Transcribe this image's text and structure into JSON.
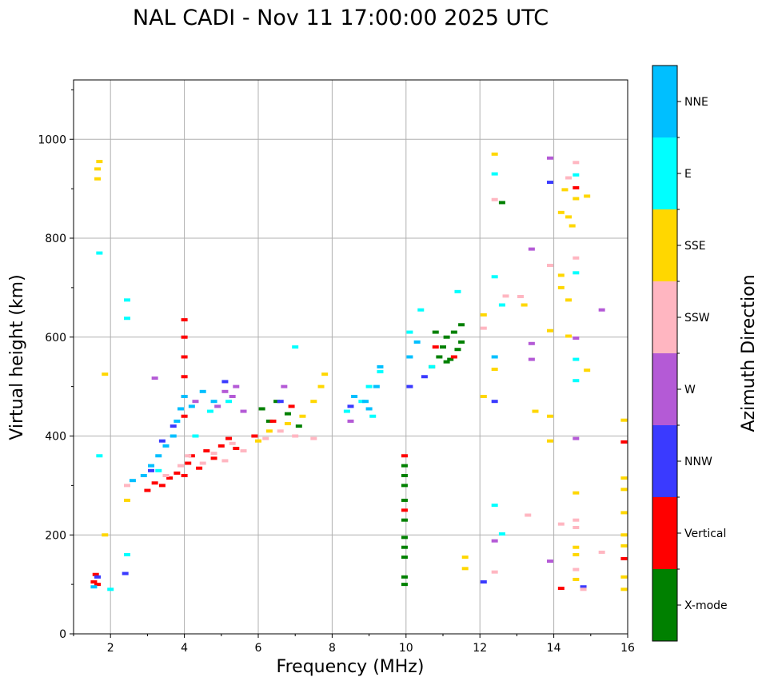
{
  "chart_data": {
    "type": "scatter",
    "title": "NAL CADI - Nov 11 17:00:00 2025 UTC",
    "xlabel": "Frequency (MHz)",
    "ylabel": "Virtual height (km)",
    "xlim": [
      1,
      16
    ],
    "ylim": [
      0,
      1120
    ],
    "xticks": [
      2,
      4,
      6,
      8,
      10,
      12,
      14,
      16
    ],
    "yticks": [
      0,
      200,
      400,
      600,
      800,
      1000
    ],
    "grid": true,
    "colorbar": {
      "label": "Azimuth Direction",
      "categories": [
        {
          "name": "X-mode",
          "color": "#008000"
        },
        {
          "name": "Vertical",
          "color": "#ff0000"
        },
        {
          "name": "NNW",
          "color": "#3a3aff"
        },
        {
          "name": "W",
          "color": "#b45ad6"
        },
        {
          "name": "SSW",
          "color": "#ffb6c1"
        },
        {
          "name": "SSE",
          "color": "#ffd700"
        },
        {
          "name": "E",
          "color": "#00ffff"
        },
        {
          "name": "NNE",
          "color": "#00bfff"
        }
      ]
    },
    "series": [
      {
        "name": "X-mode",
        "points": [
          [
            6.1,
            455
          ],
          [
            6.3,
            430
          ],
          [
            6.5,
            470
          ],
          [
            6.8,
            445
          ],
          [
            7.1,
            420
          ],
          [
            9.96,
            100
          ],
          [
            9.96,
            115
          ],
          [
            9.96,
            155
          ],
          [
            9.96,
            175
          ],
          [
            9.96,
            195
          ],
          [
            9.96,
            230
          ],
          [
            9.96,
            270
          ],
          [
            9.96,
            300
          ],
          [
            9.96,
            320
          ],
          [
            9.96,
            340
          ],
          [
            10.7,
            540
          ],
          [
            10.9,
            560
          ],
          [
            11.0,
            580
          ],
          [
            11.1,
            600
          ],
          [
            11.2,
            555
          ],
          [
            11.3,
            610
          ],
          [
            11.4,
            575
          ],
          [
            11.5,
            590
          ],
          [
            11.5,
            625
          ],
          [
            11.1,
            550
          ],
          [
            10.8,
            610
          ],
          [
            12.6,
            872
          ]
        ]
      },
      {
        "name": "Vertical",
        "points": [
          [
            1.55,
            105
          ],
          [
            1.6,
            120
          ],
          [
            1.65,
            100
          ],
          [
            3.0,
            290
          ],
          [
            3.2,
            305
          ],
          [
            3.4,
            300
          ],
          [
            3.6,
            315
          ],
          [
            3.8,
            325
          ],
          [
            4.0,
            320
          ],
          [
            4.1,
            345
          ],
          [
            4.2,
            360
          ],
          [
            4.4,
            335
          ],
          [
            4.6,
            370
          ],
          [
            4.8,
            355
          ],
          [
            5.0,
            380
          ],
          [
            5.2,
            395
          ],
          [
            5.4,
            375
          ],
          [
            4.0,
            440
          ],
          [
            4.0,
            480
          ],
          [
            4.0,
            520
          ],
          [
            4.0,
            560
          ],
          [
            4.0,
            600
          ],
          [
            4.0,
            635
          ],
          [
            5.9,
            400
          ],
          [
            6.4,
            430
          ],
          [
            6.9,
            460
          ],
          [
            9.96,
            250
          ],
          [
            9.96,
            360
          ],
          [
            10.8,
            580
          ],
          [
            11.3,
            560
          ],
          [
            14.2,
            92
          ],
          [
            14.6,
            902
          ],
          [
            15.9,
            152
          ],
          [
            15.9,
            388
          ]
        ]
      },
      {
        "name": "NNW",
        "points": [
          [
            1.65,
            115
          ],
          [
            2.4,
            122
          ],
          [
            3.1,
            330
          ],
          [
            3.4,
            390
          ],
          [
            3.7,
            420
          ],
          [
            5.1,
            510
          ],
          [
            6.6,
            470
          ],
          [
            10.1,
            500
          ],
          [
            10.5,
            520
          ],
          [
            8.5,
            460
          ],
          [
            12.1,
            105
          ],
          [
            12.4,
            470
          ],
          [
            14.8,
            95
          ],
          [
            13.9,
            913
          ]
        ]
      },
      {
        "name": "W",
        "points": [
          [
            3.2,
            517
          ],
          [
            4.3,
            470
          ],
          [
            4.9,
            460
          ],
          [
            5.1,
            490
          ],
          [
            5.3,
            480
          ],
          [
            5.4,
            500
          ],
          [
            5.6,
            450
          ],
          [
            6.7,
            500
          ],
          [
            8.5,
            430
          ],
          [
            12.4,
            188
          ],
          [
            13.4,
            587
          ],
          [
            13.4,
            555
          ],
          [
            13.9,
            147
          ],
          [
            14.6,
            395
          ],
          [
            14.6,
            598
          ],
          [
            13.9,
            962
          ],
          [
            15.3,
            655
          ],
          [
            13.4,
            778
          ]
        ]
      },
      {
        "name": "SSW",
        "points": [
          [
            2.45,
            300
          ],
          [
            3.5,
            320
          ],
          [
            3.9,
            340
          ],
          [
            4.1,
            360
          ],
          [
            4.5,
            345
          ],
          [
            4.8,
            365
          ],
          [
            5.1,
            350
          ],
          [
            5.3,
            385
          ],
          [
            5.6,
            370
          ],
          [
            6.2,
            395
          ],
          [
            6.6,
            410
          ],
          [
            7.0,
            400
          ],
          [
            7.5,
            395
          ],
          [
            12.1,
            618
          ],
          [
            12.4,
            125
          ],
          [
            12.4,
            878
          ],
          [
            12.7,
            683
          ],
          [
            13.1,
            682
          ],
          [
            13.3,
            240
          ],
          [
            13.9,
            745
          ],
          [
            14.2,
            222
          ],
          [
            14.6,
            130
          ],
          [
            14.6,
            215
          ],
          [
            14.6,
            230
          ],
          [
            14.6,
            760
          ],
          [
            14.6,
            953
          ],
          [
            14.4,
            922
          ],
          [
            15.3,
            165
          ],
          [
            14.8,
            90
          ]
        ]
      },
      {
        "name": "SSE",
        "points": [
          [
            1.65,
            920
          ],
          [
            1.65,
            940
          ],
          [
            1.7,
            955
          ],
          [
            1.85,
            525
          ],
          [
            1.85,
            200
          ],
          [
            2.45,
            270
          ],
          [
            6.0,
            390
          ],
          [
            6.3,
            410
          ],
          [
            6.8,
            425
          ],
          [
            7.2,
            440
          ],
          [
            7.5,
            470
          ],
          [
            7.7,
            500
          ],
          [
            7.8,
            525
          ],
          [
            11.6,
            155
          ],
          [
            11.6,
            132
          ],
          [
            12.1,
            645
          ],
          [
            12.1,
            480
          ],
          [
            12.4,
            970
          ],
          [
            12.4,
            535
          ],
          [
            13.5,
            450
          ],
          [
            13.9,
            390
          ],
          [
            13.9,
            440
          ],
          [
            13.9,
            613
          ],
          [
            14.2,
            700
          ],
          [
            14.2,
            725
          ],
          [
            14.2,
            852
          ],
          [
            14.3,
            898
          ],
          [
            14.4,
            843
          ],
          [
            14.5,
            825
          ],
          [
            14.4,
            602
          ],
          [
            14.4,
            675
          ],
          [
            14.6,
            110
          ],
          [
            14.6,
            160
          ],
          [
            14.6,
            175
          ],
          [
            14.6,
            285
          ],
          [
            14.6,
            880
          ],
          [
            14.9,
            885
          ],
          [
            14.9,
            533
          ],
          [
            15.9,
            90
          ],
          [
            15.9,
            115
          ],
          [
            15.9,
            178
          ],
          [
            15.9,
            200
          ],
          [
            15.9,
            245
          ],
          [
            15.9,
            292
          ],
          [
            15.9,
            315
          ],
          [
            15.9,
            432
          ],
          [
            13.2,
            665
          ]
        ]
      },
      {
        "name": "E",
        "points": [
          [
            1.7,
            770
          ],
          [
            1.7,
            360
          ],
          [
            2.0,
            90
          ],
          [
            2.45,
            675
          ],
          [
            2.45,
            638
          ],
          [
            2.45,
            160
          ],
          [
            3.3,
            330
          ],
          [
            4.3,
            400
          ],
          [
            4.7,
            450
          ],
          [
            5.2,
            470
          ],
          [
            7.0,
            580
          ],
          [
            8.4,
            450
          ],
          [
            8.8,
            470
          ],
          [
            9.0,
            500
          ],
          [
            9.1,
            440
          ],
          [
            9.3,
            530
          ],
          [
            10.1,
            610
          ],
          [
            10.4,
            655
          ],
          [
            10.7,
            540
          ],
          [
            11.4,
            692
          ],
          [
            12.4,
            930
          ],
          [
            12.4,
            722
          ],
          [
            12.4,
            260
          ],
          [
            12.6,
            202
          ],
          [
            12.6,
            665
          ],
          [
            14.6,
            555
          ],
          [
            14.6,
            512
          ],
          [
            14.6,
            730
          ],
          [
            14.6,
            928
          ]
        ]
      },
      {
        "name": "NNE",
        "points": [
          [
            1.55,
            95
          ],
          [
            2.6,
            310
          ],
          [
            2.9,
            320
          ],
          [
            3.1,
            340
          ],
          [
            3.3,
            360
          ],
          [
            3.5,
            380
          ],
          [
            3.7,
            400
          ],
          [
            3.8,
            430
          ],
          [
            3.9,
            455
          ],
          [
            4.0,
            480
          ],
          [
            4.2,
            460
          ],
          [
            4.5,
            490
          ],
          [
            4.8,
            470
          ],
          [
            8.6,
            480
          ],
          [
            8.9,
            470
          ],
          [
            9.0,
            455
          ],
          [
            9.2,
            500
          ],
          [
            9.3,
            540
          ],
          [
            10.1,
            560
          ],
          [
            10.3,
            590
          ],
          [
            12.4,
            560
          ]
        ]
      }
    ]
  }
}
